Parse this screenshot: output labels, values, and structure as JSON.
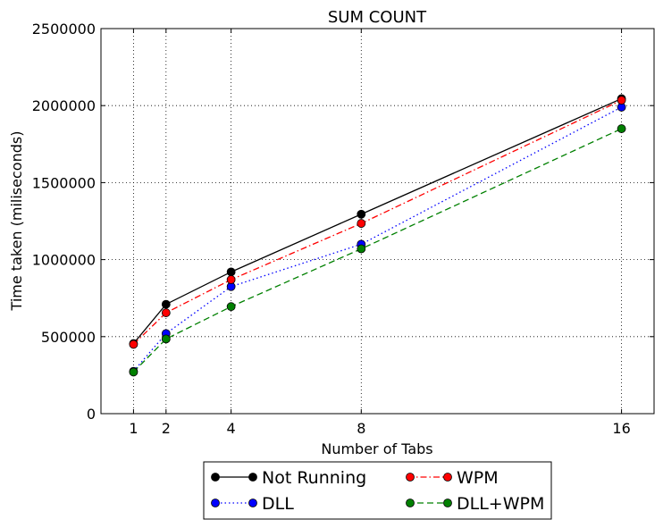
{
  "chart_data": {
    "type": "line",
    "title": "SUM COUNT",
    "xlabel": "Number of Tabs",
    "ylabel": "Time taken (miliseconds)",
    "x": [
      1,
      2,
      4,
      8,
      16
    ],
    "xticks": [
      "1",
      "2",
      "4",
      "8",
      "16"
    ],
    "xlim": [
      0,
      17
    ],
    "ylim": [
      0,
      2500000
    ],
    "yticks": [
      "0",
      "500000",
      "1000000",
      "1500000",
      "2000000",
      "2500000"
    ],
    "grid": true,
    "legend_position": "bottom-outside",
    "series": [
      {
        "name": "Not Running",
        "values": [
          455000,
          710000,
          920000,
          1295000,
          2045000
        ],
        "color": "#000000",
        "dash": "solid"
      },
      {
        "name": "DLL",
        "values": [
          275000,
          520000,
          825000,
          1100000,
          1990000
        ],
        "color": "#0000ff",
        "dash": "dotted"
      },
      {
        "name": "WPM",
        "values": [
          450000,
          655000,
          870000,
          1235000,
          2035000
        ],
        "color": "#ff0000",
        "dash": "dashdot"
      },
      {
        "name": "DLL+WPM",
        "values": [
          270000,
          485000,
          695000,
          1070000,
          1850000
        ],
        "color": "#008000",
        "dash": "dashed"
      }
    ]
  }
}
